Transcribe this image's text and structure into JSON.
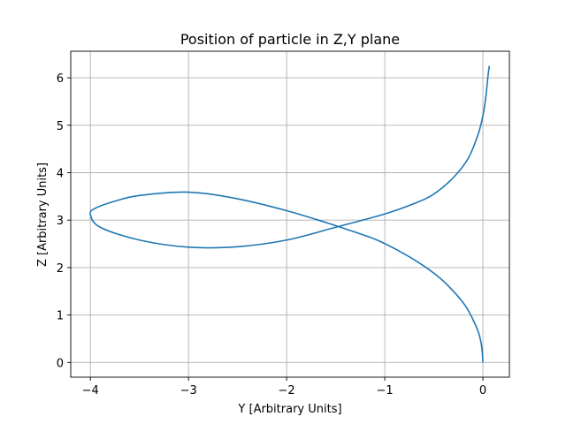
{
  "chart_data": {
    "type": "line",
    "title": "Position of particle in Z,Y plane",
    "xlabel": "Y [Arbitrary Units]",
    "ylabel": "Z [Arbitrary Units]",
    "xlim": [
      -4.2,
      0.27
    ],
    "ylim": [
      -0.31,
      6.56
    ],
    "xticks": [
      -4,
      -3,
      -2,
      -1,
      0
    ],
    "xtick_labels": [
      "−4",
      "−3",
      "−2",
      "−1",
      "0"
    ],
    "yticks": [
      0,
      1,
      2,
      3,
      4,
      5,
      6
    ],
    "ytick_labels": [
      "0",
      "1",
      "2",
      "3",
      "4",
      "5",
      "6"
    ],
    "grid": true,
    "series": [
      {
        "color": "#1f77b4",
        "points": [
          [
            0.0,
            0.0
          ],
          [
            -0.01,
            0.3
          ],
          [
            -0.04,
            0.6
          ],
          [
            -0.1,
            0.9
          ],
          [
            -0.18,
            1.2
          ],
          [
            -0.3,
            1.5
          ],
          [
            -0.45,
            1.8
          ],
          [
            -0.65,
            2.1
          ],
          [
            -0.9,
            2.4
          ],
          [
            -1.1,
            2.6
          ],
          [
            -1.35,
            2.78
          ],
          [
            -1.6,
            2.95
          ],
          [
            -2.0,
            3.2
          ],
          [
            -2.5,
            3.45
          ],
          [
            -3.0,
            3.59
          ],
          [
            -3.5,
            3.52
          ],
          [
            -3.75,
            3.4
          ],
          [
            -3.95,
            3.25
          ],
          [
            -4.0,
            3.12
          ],
          [
            -3.9,
            2.85
          ],
          [
            -3.5,
            2.58
          ],
          [
            -3.0,
            2.43
          ],
          [
            -2.5,
            2.44
          ],
          [
            -2.0,
            2.58
          ],
          [
            -1.5,
            2.85
          ],
          [
            -1.0,
            3.13
          ],
          [
            -0.7,
            3.35
          ],
          [
            -0.5,
            3.55
          ],
          [
            -0.3,
            3.9
          ],
          [
            -0.15,
            4.3
          ],
          [
            -0.05,
            4.8
          ],
          [
            0.0,
            5.2
          ],
          [
            0.03,
            5.6
          ],
          [
            0.05,
            6.0
          ],
          [
            0.065,
            6.25
          ]
        ]
      }
    ]
  }
}
